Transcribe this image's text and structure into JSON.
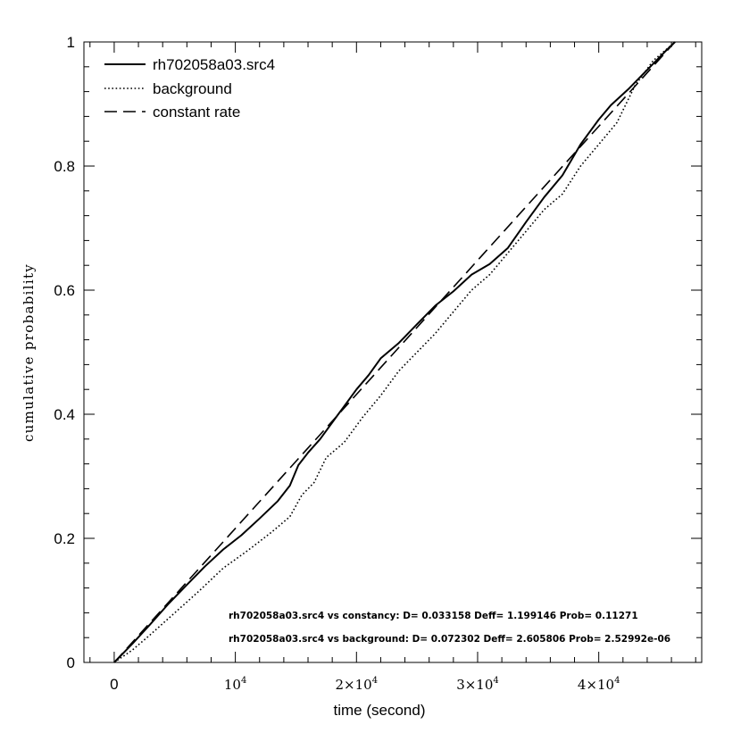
{
  "chart_data": {
    "type": "line",
    "xlabel": "time (second)",
    "ylabel": "cumulative probability",
    "xlim": [
      -2500,
      48500
    ],
    "ylim": [
      0,
      1
    ],
    "x_ticks": [
      {
        "value": 0,
        "label": "0",
        "exp": ""
      },
      {
        "value": 10000,
        "label": "10",
        "exp": "4"
      },
      {
        "value": 20000,
        "label": "2×10",
        "exp": "4"
      },
      {
        "value": 30000,
        "label": "3×10",
        "exp": "4"
      },
      {
        "value": 40000,
        "label": "4×10",
        "exp": "4"
      }
    ],
    "y_ticks": [
      {
        "value": 0,
        "label": "0"
      },
      {
        "value": 0.2,
        "label": "0.2"
      },
      {
        "value": 0.4,
        "label": "0.4"
      },
      {
        "value": 0.6,
        "label": "0.6"
      },
      {
        "value": 0.8,
        "label": "0.8"
      },
      {
        "value": 1,
        "label": "1"
      }
    ],
    "legend_position": "top-left",
    "series": [
      {
        "name": "rh702058a03.src4",
        "style": "solid",
        "color": "#000000",
        "points": [
          [
            0,
            0
          ],
          [
            1500,
            0.03
          ],
          [
            3000,
            0.062
          ],
          [
            4500,
            0.095
          ],
          [
            6000,
            0.125
          ],
          [
            7500,
            0.155
          ],
          [
            9000,
            0.182
          ],
          [
            10500,
            0.205
          ],
          [
            12000,
            0.232
          ],
          [
            13500,
            0.26
          ],
          [
            14500,
            0.285
          ],
          [
            15200,
            0.318
          ],
          [
            16000,
            0.338
          ],
          [
            17000,
            0.36
          ],
          [
            18500,
            0.4
          ],
          [
            20000,
            0.44
          ],
          [
            21000,
            0.463
          ],
          [
            22000,
            0.49
          ],
          [
            23500,
            0.515
          ],
          [
            25000,
            0.545
          ],
          [
            26500,
            0.575
          ],
          [
            28000,
            0.598
          ],
          [
            29500,
            0.625
          ],
          [
            31000,
            0.642
          ],
          [
            32500,
            0.668
          ],
          [
            34000,
            0.71
          ],
          [
            35500,
            0.75
          ],
          [
            37000,
            0.785
          ],
          [
            38500,
            0.835
          ],
          [
            40000,
            0.875
          ],
          [
            41000,
            0.898
          ],
          [
            42500,
            0.925
          ],
          [
            44000,
            0.955
          ],
          [
            45500,
            0.985
          ],
          [
            46300,
            1
          ]
        ]
      },
      {
        "name": "background",
        "style": "dotted",
        "color": "#000000",
        "points": [
          [
            0,
            0
          ],
          [
            1500,
            0.02
          ],
          [
            3000,
            0.045
          ],
          [
            5000,
            0.08
          ],
          [
            7000,
            0.115
          ],
          [
            9000,
            0.152
          ],
          [
            11000,
            0.18
          ],
          [
            13000,
            0.21
          ],
          [
            14500,
            0.235
          ],
          [
            15500,
            0.27
          ],
          [
            16500,
            0.29
          ],
          [
            17500,
            0.33
          ],
          [
            19000,
            0.355
          ],
          [
            20500,
            0.395
          ],
          [
            22000,
            0.43
          ],
          [
            23500,
            0.47
          ],
          [
            25000,
            0.5
          ],
          [
            26500,
            0.53
          ],
          [
            28000,
            0.565
          ],
          [
            29500,
            0.6
          ],
          [
            31000,
            0.625
          ],
          [
            32500,
            0.66
          ],
          [
            34000,
            0.695
          ],
          [
            35500,
            0.73
          ],
          [
            37000,
            0.755
          ],
          [
            38500,
            0.8
          ],
          [
            40000,
            0.835
          ],
          [
            41500,
            0.87
          ],
          [
            43000,
            0.93
          ],
          [
            44500,
            0.97
          ],
          [
            46300,
            1
          ]
        ]
      },
      {
        "name": "constant rate",
        "style": "dashed",
        "color": "#000000",
        "points": [
          [
            0,
            0
          ],
          [
            46300,
            1
          ]
        ]
      }
    ],
    "annotations": [
      "rh702058a03.src4 vs constancy: D= 0.033158 Deff= 1.199146 Prob= 0.11271",
      "rh702058a03.src4 vs background: D= 0.072302 Deff= 2.605806 Prob= 2.52992e-06"
    ]
  }
}
